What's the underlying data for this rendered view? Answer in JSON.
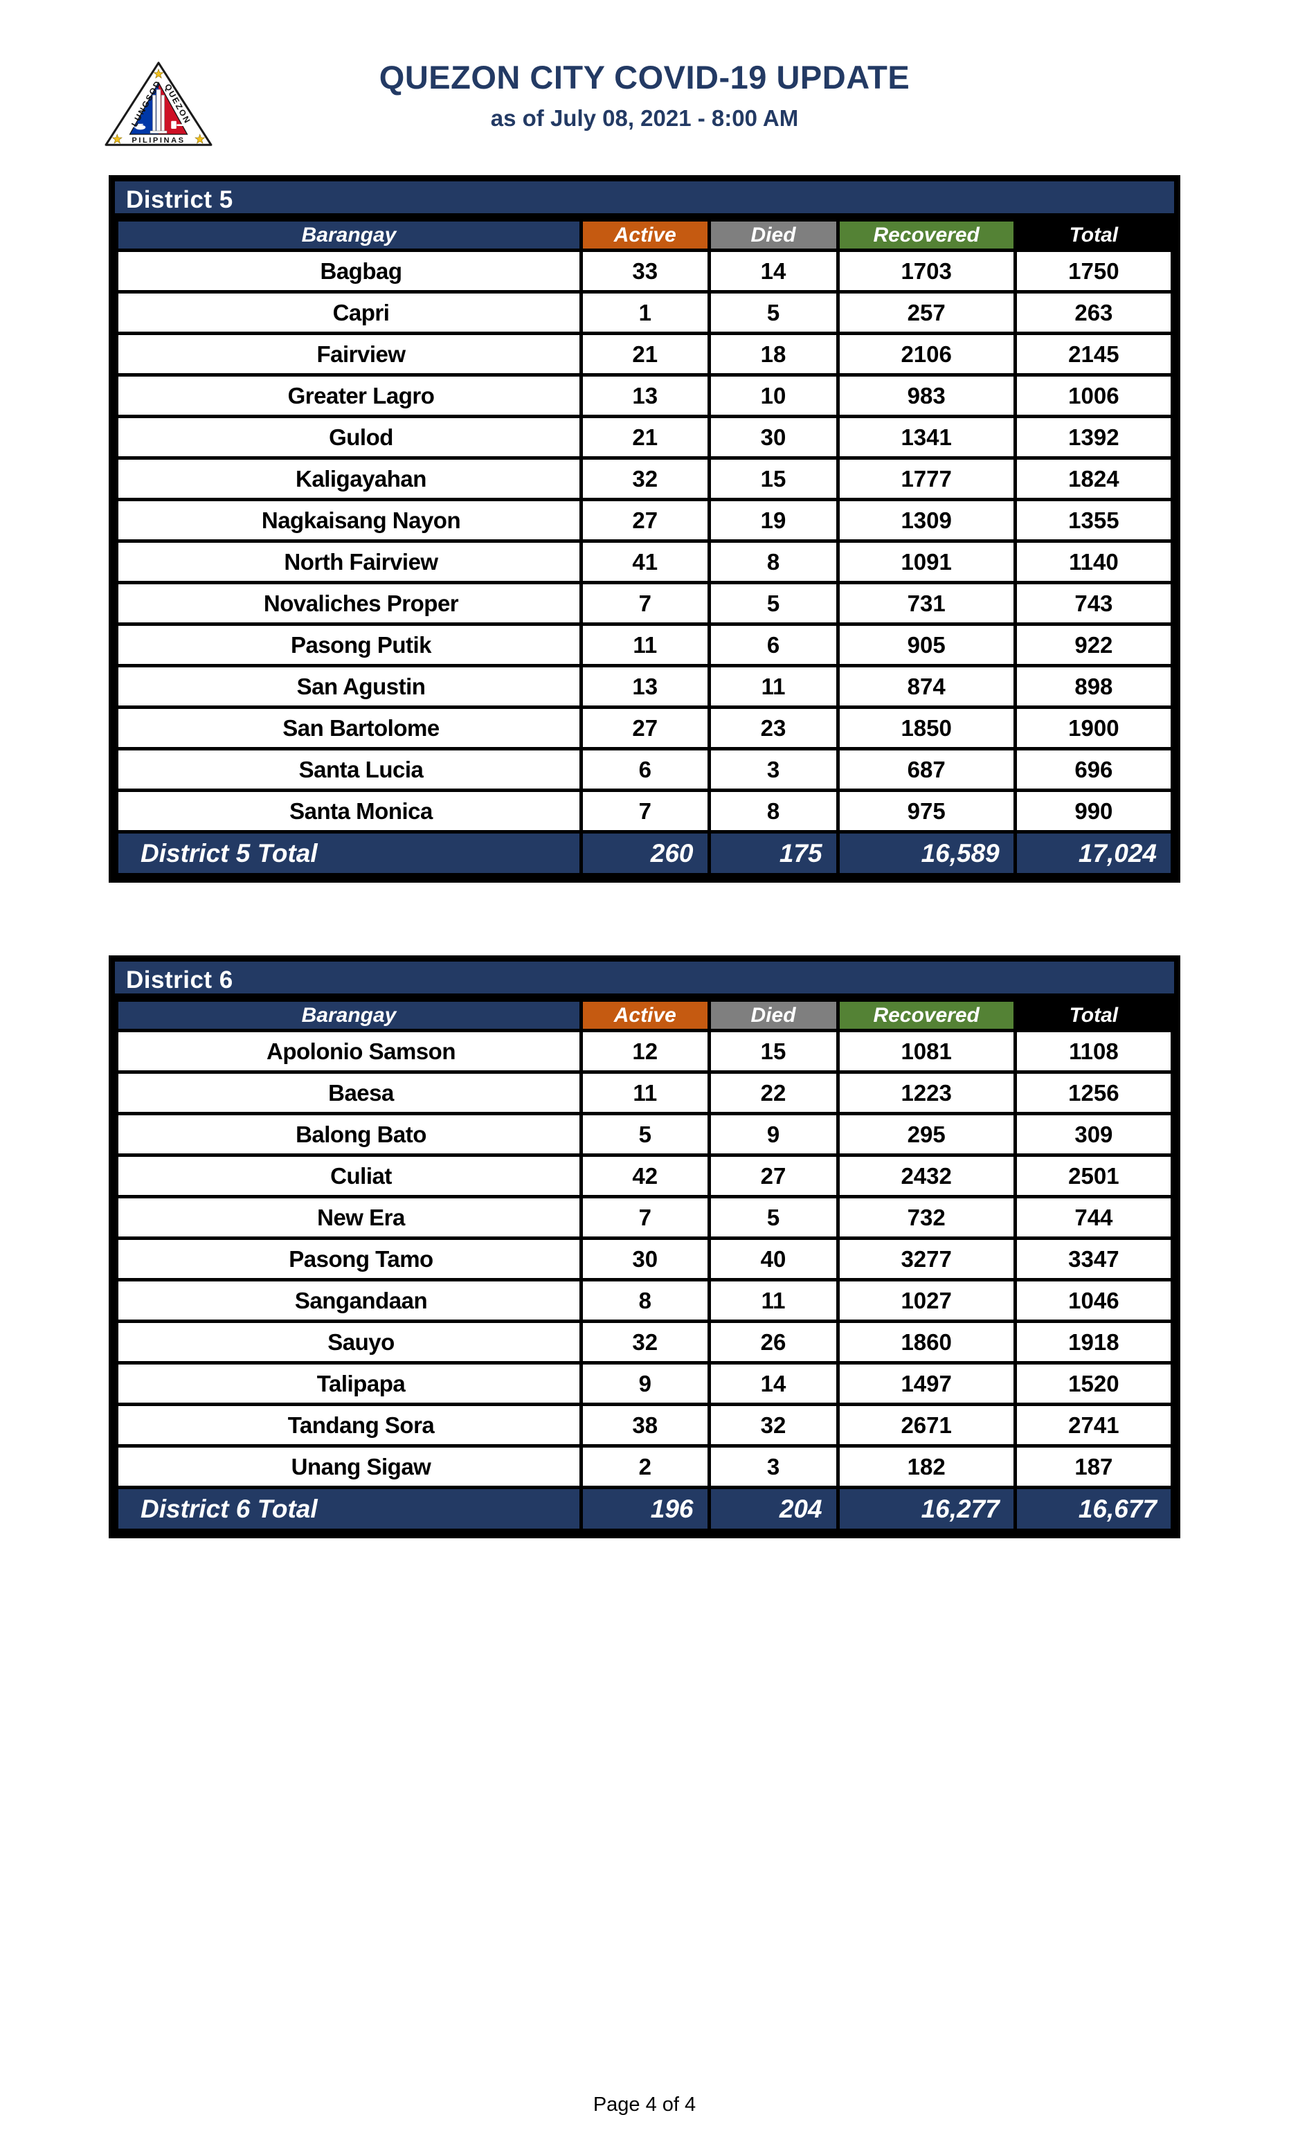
{
  "header": {
    "title": "QUEZON CITY COVID-19 UPDATE",
    "subtitle": "as of July 08, 2021 - 8:00 AM",
    "logo": {
      "text_left": "LUNGSOD",
      "text_right": "QUEZON",
      "text_bottom": "PILIPINAS"
    }
  },
  "colors": {
    "navy": "#233A64",
    "orange": "#C55A11",
    "gray": "#7F7F7F",
    "green": "#548235",
    "row_blue": "#BDD7EE",
    "header_black": "#000000",
    "logo_blue": "#0038A8",
    "logo_red": "#CE1126",
    "logo_star_gold": "#F2C01E"
  },
  "columns": [
    "Barangay",
    "Active",
    "Died",
    "Recovered",
    "Total"
  ],
  "tables": [
    {
      "district": "District 5",
      "rows": [
        {
          "barangay": "Bagbag",
          "active": "33",
          "died": "14",
          "recovered": "1703",
          "total": "1750"
        },
        {
          "barangay": "Capri",
          "active": "1",
          "died": "5",
          "recovered": "257",
          "total": "263"
        },
        {
          "barangay": "Fairview",
          "active": "21",
          "died": "18",
          "recovered": "2106",
          "total": "2145"
        },
        {
          "barangay": "Greater Lagro",
          "active": "13",
          "died": "10",
          "recovered": "983",
          "total": "1006"
        },
        {
          "barangay": "Gulod",
          "active": "21",
          "died": "30",
          "recovered": "1341",
          "total": "1392"
        },
        {
          "barangay": "Kaligayahan",
          "active": "32",
          "died": "15",
          "recovered": "1777",
          "total": "1824"
        },
        {
          "barangay": "Nagkaisang Nayon",
          "active": "27",
          "died": "19",
          "recovered": "1309",
          "total": "1355"
        },
        {
          "barangay": "North Fairview",
          "active": "41",
          "died": "8",
          "recovered": "1091",
          "total": "1140"
        },
        {
          "barangay": "Novaliches Proper",
          "active": "7",
          "died": "5",
          "recovered": "731",
          "total": "743"
        },
        {
          "barangay": "Pasong Putik",
          "active": "11",
          "died": "6",
          "recovered": "905",
          "total": "922"
        },
        {
          "barangay": "San Agustin",
          "active": "13",
          "died": "11",
          "recovered": "874",
          "total": "898"
        },
        {
          "barangay": "San Bartolome",
          "active": "27",
          "died": "23",
          "recovered": "1850",
          "total": "1900"
        },
        {
          "barangay": "Santa Lucia",
          "active": "6",
          "died": "3",
          "recovered": "687",
          "total": "696"
        },
        {
          "barangay": "Santa Monica",
          "active": "7",
          "died": "8",
          "recovered": "975",
          "total": "990"
        }
      ],
      "total_row": {
        "label": "District 5 Total",
        "active": "260",
        "died": "175",
        "recovered": "16,589",
        "total": "17,024"
      }
    },
    {
      "district": "District 6",
      "rows": [
        {
          "barangay": "Apolonio Samson",
          "active": "12",
          "died": "15",
          "recovered": "1081",
          "total": "1108"
        },
        {
          "barangay": "Baesa",
          "active": "11",
          "died": "22",
          "recovered": "1223",
          "total": "1256"
        },
        {
          "barangay": "Balong Bato",
          "active": "5",
          "died": "9",
          "recovered": "295",
          "total": "309"
        },
        {
          "barangay": "Culiat",
          "active": "42",
          "died": "27",
          "recovered": "2432",
          "total": "2501"
        },
        {
          "barangay": "New Era",
          "active": "7",
          "died": "5",
          "recovered": "732",
          "total": "744"
        },
        {
          "barangay": "Pasong Tamo",
          "active": "30",
          "died": "40",
          "recovered": "3277",
          "total": "3347"
        },
        {
          "barangay": "Sangandaan",
          "active": "8",
          "died": "11",
          "recovered": "1027",
          "total": "1046"
        },
        {
          "barangay": "Sauyo",
          "active": "32",
          "died": "26",
          "recovered": "1860",
          "total": "1918"
        },
        {
          "barangay": "Talipapa",
          "active": "9",
          "died": "14",
          "recovered": "1497",
          "total": "1520"
        },
        {
          "barangay": "Tandang Sora",
          "active": "38",
          "died": "32",
          "recovered": "2671",
          "total": "2741"
        },
        {
          "barangay": "Unang Sigaw",
          "active": "2",
          "died": "3",
          "recovered": "182",
          "total": "187"
        }
      ],
      "total_row": {
        "label": "District 6 Total",
        "active": "196",
        "died": "204",
        "recovered": "16,277",
        "total": "16,677"
      }
    }
  ],
  "footer": {
    "page_label": "Page 4 of 4"
  }
}
